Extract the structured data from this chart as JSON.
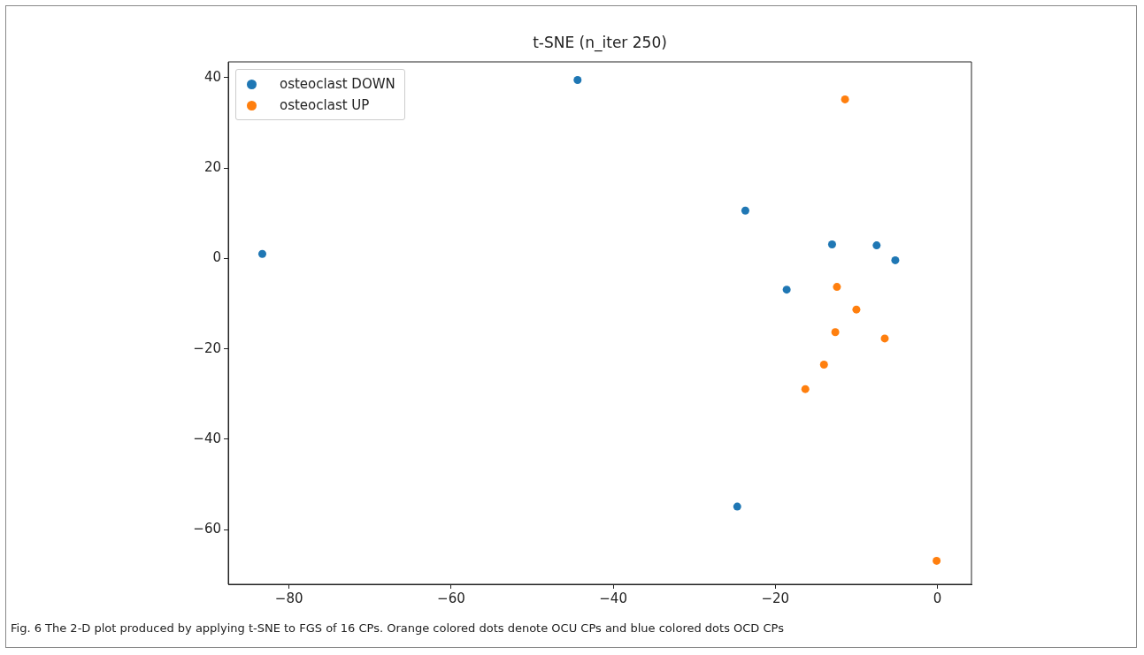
{
  "chart_data": {
    "type": "scatter",
    "title": "t-SNE (n_iter 250)",
    "series": [
      {
        "name": "osteoclast DOWN",
        "color": "#1f77b4",
        "x": [
          -83.3,
          -44.4,
          -23.7,
          -13.0,
          -7.5,
          -5.2,
          -18.6,
          -24.7
        ],
        "values": [
          1.0,
          39.5,
          10.6,
          3.1,
          2.9,
          -0.4,
          -6.9,
          -54.9
        ]
      },
      {
        "name": "osteoclast UP",
        "color": "#ff7f0e",
        "x": [
          -11.4,
          -12.4,
          -10.0,
          -12.6,
          -6.5,
          -14.0,
          -16.3,
          -0.1
        ],
        "values": [
          35.2,
          -6.3,
          -11.3,
          -16.3,
          -17.7,
          -23.5,
          -28.9,
          -66.9
        ]
      }
    ],
    "xlim": [
      -87.5,
      4.2
    ],
    "xticks": [
      -80,
      -60,
      -40,
      -20,
      0
    ],
    "ylim": [
      -72.1,
      43.5
    ],
    "yticks": [
      -60,
      -40,
      -20,
      0,
      20,
      40
    ],
    "grid": false,
    "legend": "top left",
    "marker": "circle",
    "annotations": [
      "Fig. 6 The 2-D plot produced by applying t-SNE to FGS of 16 CPs. Orange colored dots denote OCU CPs and blue colored dots OCD CPs"
    ]
  }
}
